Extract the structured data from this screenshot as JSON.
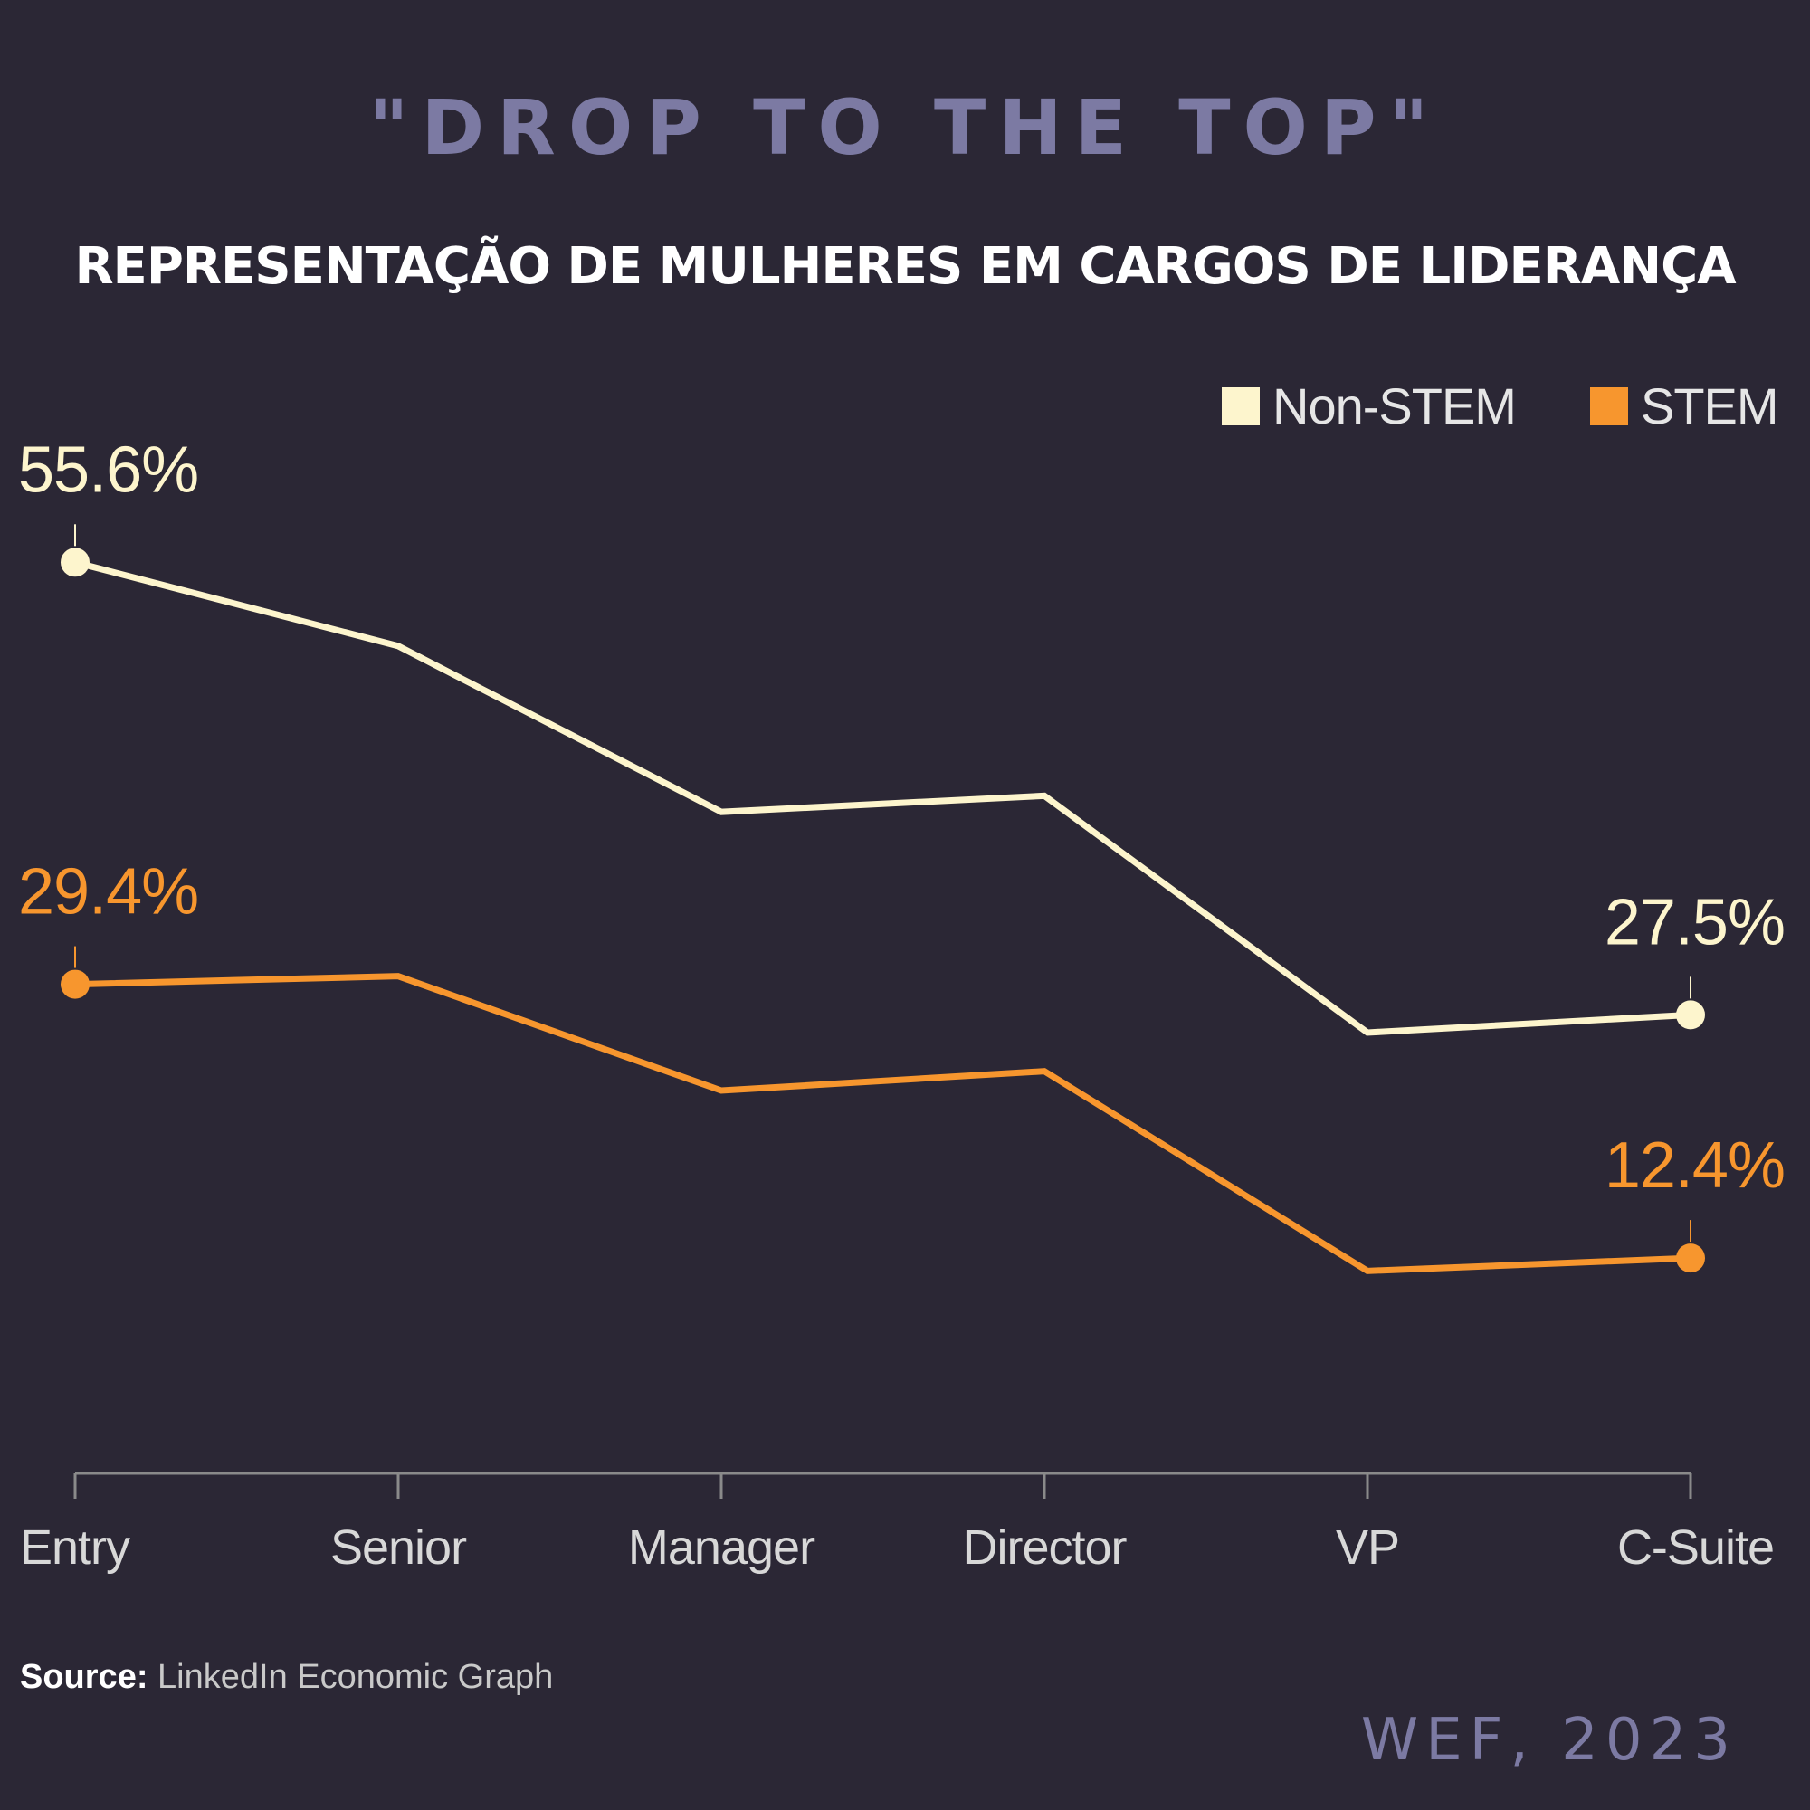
{
  "headline": "\"DROP TO THE TOP\"",
  "subtitle": "REPRESENTAÇÃO DE MULHERES EM CARGOS DE LIDERANÇA",
  "source_label": "Source:",
  "source_text": "LinkedIn Economic Graph",
  "credit": "WEF, 2023",
  "colors": {
    "background": "#2b2735",
    "non_stem": "#fdf5cd",
    "stem": "#f7962e",
    "axis": "#8a8a8a",
    "accent": "#7c7aa3"
  },
  "chart_data": {
    "type": "line",
    "categories": [
      "Entry",
      "Senior",
      "Manager",
      "Director",
      "VP",
      "C-Suite"
    ],
    "series": [
      {
        "name": "Non-STEM",
        "values": [
          55.6,
          50.4,
          40.1,
          41.1,
          26.4,
          27.5
        ],
        "color": "#fdf5cd"
      },
      {
        "name": "STEM",
        "values": [
          29.4,
          29.9,
          22.8,
          24.0,
          11.6,
          12.4
        ],
        "color": "#f7962e"
      }
    ],
    "data_labels": [
      {
        "series": 0,
        "index": 0,
        "text": "55.6%"
      },
      {
        "series": 0,
        "index": 5,
        "text": "27.5%"
      },
      {
        "series": 1,
        "index": 0,
        "text": "29.4%"
      },
      {
        "series": 1,
        "index": 5,
        "text": "12.4%"
      }
    ],
    "legend_position": "top-right",
    "ylim": [
      6,
      60
    ],
    "grid": false
  }
}
